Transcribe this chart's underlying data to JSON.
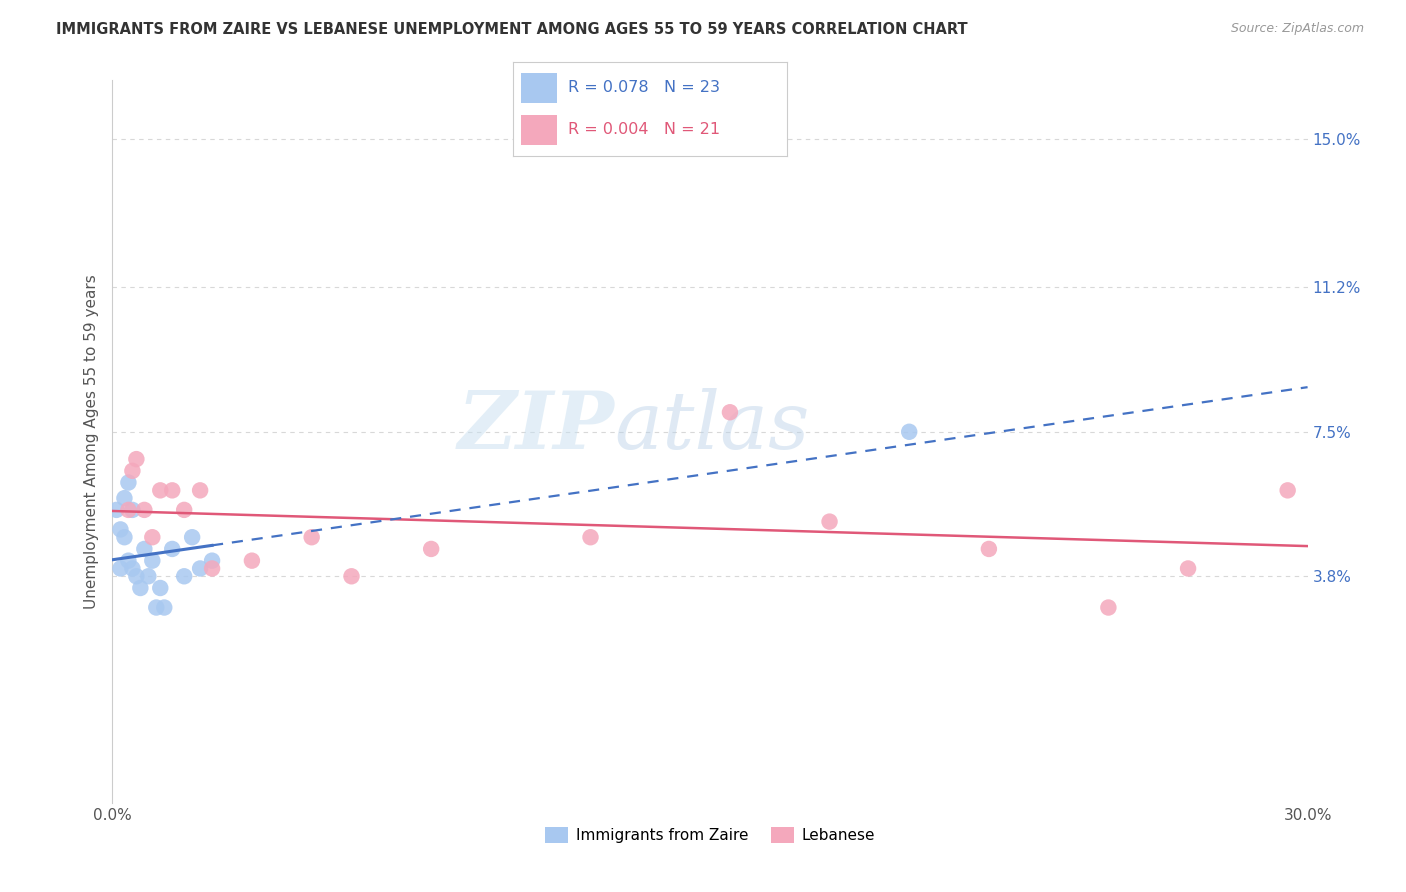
{
  "title": "IMMIGRANTS FROM ZAIRE VS LEBANESE UNEMPLOYMENT AMONG AGES 55 TO 59 YEARS CORRELATION CHART",
  "source": "Source: ZipAtlas.com",
  "ylabel": "Unemployment Among Ages 55 to 59 years",
  "xlim": [
    0.0,
    0.3
  ],
  "ylim": [
    -0.02,
    0.165
  ],
  "xtick_vals": [
    0.0,
    0.05,
    0.1,
    0.15,
    0.2,
    0.25,
    0.3
  ],
  "xtick_labels": [
    "0.0%",
    "",
    "",
    "",
    "",
    "",
    "30.0%"
  ],
  "right_ytick_vals": [
    0.038,
    0.075,
    0.112,
    0.15
  ],
  "right_ytick_labels": [
    "3.8%",
    "7.5%",
    "11.2%",
    "15.0%"
  ],
  "grid_color": "#d8d8d8",
  "background_color": "#ffffff",
  "watermark_zip": "ZIP",
  "watermark_atlas": "atlas",
  "zaire_color": "#a8c8f0",
  "zaire_line_color": "#4472c4",
  "lebanese_color": "#f4a8bc",
  "lebanese_line_color": "#e05878",
  "zaire_R": 0.078,
  "zaire_N": 23,
  "lebanese_R": 0.004,
  "lebanese_N": 21,
  "zaire_x": [
    0.001,
    0.002,
    0.002,
    0.003,
    0.003,
    0.004,
    0.004,
    0.005,
    0.005,
    0.006,
    0.007,
    0.008,
    0.009,
    0.01,
    0.011,
    0.012,
    0.013,
    0.015,
    0.018,
    0.02,
    0.022,
    0.025,
    0.2
  ],
  "zaire_y": [
    0.055,
    0.05,
    0.04,
    0.058,
    0.048,
    0.062,
    0.042,
    0.055,
    0.04,
    0.038,
    0.035,
    0.045,
    0.038,
    0.042,
    0.03,
    0.035,
    0.03,
    0.045,
    0.038,
    0.048,
    0.04,
    0.042,
    0.075
  ],
  "lebanese_x": [
    0.004,
    0.005,
    0.006,
    0.008,
    0.01,
    0.012,
    0.015,
    0.018,
    0.022,
    0.025,
    0.035,
    0.05,
    0.06,
    0.08,
    0.12,
    0.155,
    0.18,
    0.22,
    0.25,
    0.27,
    0.295
  ],
  "lebanese_y": [
    0.055,
    0.065,
    0.068,
    0.055,
    0.048,
    0.06,
    0.06,
    0.055,
    0.06,
    0.04,
    0.042,
    0.048,
    0.038,
    0.045,
    0.048,
    0.08,
    0.052,
    0.045,
    0.03,
    0.04,
    0.06
  ]
}
